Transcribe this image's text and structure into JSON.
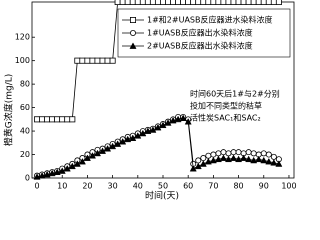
{
  "chart_data": {
    "type": "line",
    "y_label": "橙黄G浓度(mg/L)",
    "x_label": "时间(天)",
    "annotation": [
      "时间60天后1#与2#分别",
      "投加不同类型的秸草",
      "活性炭SAC₁和SAC₂"
    ],
    "x": [
      0,
      2,
      4,
      6,
      8,
      10,
      12,
      14,
      16,
      18,
      20,
      22,
      24,
      26,
      28,
      30,
      32,
      34,
      36,
      38,
      40,
      42,
      44,
      46,
      48,
      50,
      52,
      54,
      56,
      58,
      60,
      62,
      64,
      66,
      68,
      70,
      72,
      74,
      76,
      78,
      80,
      82,
      84,
      86,
      88,
      90,
      92,
      94,
      96
    ],
    "series": [
      {
        "name": "1#和2#UASB反应器进水染料浓度",
        "color": "#000000",
        "marker": "square",
        "values": [
          50,
          50,
          50,
          50,
          50,
          50,
          50,
          50,
          100,
          100,
          100,
          100,
          100,
          100,
          100,
          100,
          150,
          150,
          150,
          150,
          150,
          150,
          150,
          150,
          150,
          150,
          150,
          150,
          150,
          150,
          150,
          150,
          150,
          150,
          150,
          150,
          150,
          150,
          150,
          150,
          150,
          150,
          150,
          150,
          150,
          150,
          150,
          150,
          150
        ]
      },
      {
        "name": "1#UASB反应器出水染料浓度",
        "color": "#000000",
        "marker": "circle",
        "values": [
          2,
          3,
          4,
          5,
          6,
          8,
          10,
          12,
          15,
          17,
          20,
          22,
          24,
          25,
          27,
          29,
          31,
          33,
          35,
          36,
          38,
          40,
          41,
          42,
          44,
          46,
          48,
          50,
          52,
          52,
          50,
          12,
          15,
          17,
          19,
          20,
          21,
          22,
          21,
          22,
          22,
          21,
          22,
          21,
          20,
          21,
          20,
          18,
          16
        ]
      },
      {
        "name": "2#UASB反应器出水染料浓度",
        "color": "#000000",
        "marker": "triangle",
        "values": [
          1,
          2,
          3,
          4,
          5,
          6,
          8,
          10,
          12,
          14,
          17,
          19,
          21,
          23,
          25,
          27,
          29,
          31,
          33,
          34,
          36,
          38,
          40,
          41,
          43,
          45,
          47,
          49,
          50,
          51,
          48,
          8,
          10,
          12,
          14,
          15,
          16,
          17,
          16,
          17,
          16,
          17,
          16,
          15,
          16,
          15,
          14,
          13,
          12
        ]
      }
    ],
    "xlim": [
      -2,
      102
    ],
    "ylim": [
      0,
      150
    ],
    "xticks": [
      0,
      10,
      20,
      30,
      40,
      50,
      60,
      70,
      80,
      90,
      100
    ],
    "yticks": [
      0,
      20,
      40,
      60,
      80,
      100,
      120
    ]
  }
}
